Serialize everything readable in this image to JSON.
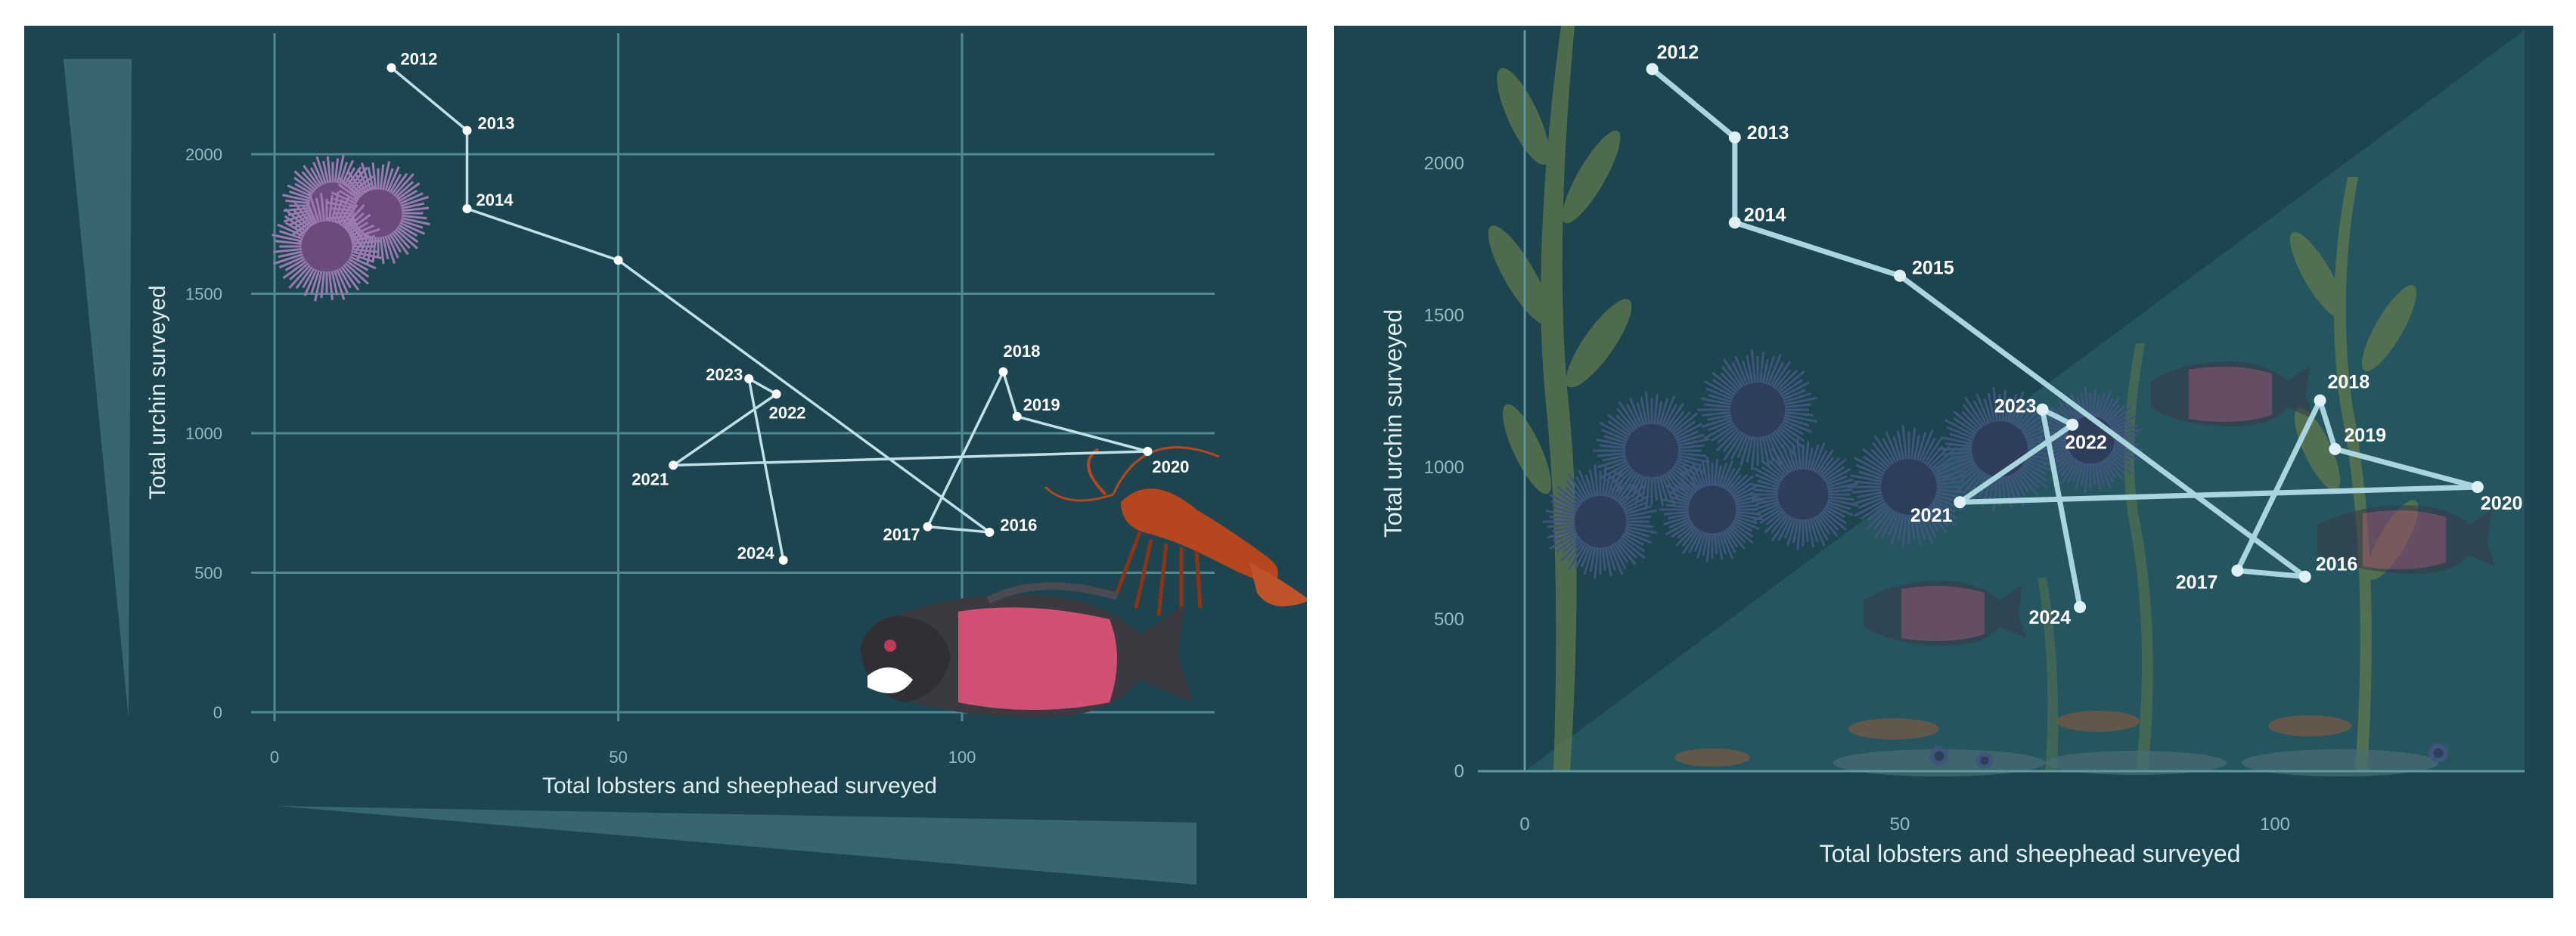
{
  "chart_data": [
    {
      "type": "line",
      "style": "connected scatter with year labels, illustrated urchins, sheephead and lobster",
      "xlabel": "Total lobsters and sheephead surveyed",
      "ylabel": "Total urchin surveyed",
      "xlim": [
        -3,
        134
      ],
      "ylim": [
        -40,
        2380
      ],
      "xticks": [
        0,
        50,
        100
      ],
      "yticks": [
        0,
        500,
        1000,
        1500,
        2000
      ],
      "grid": true,
      "points": [
        {
          "year": "2012",
          "x": 17,
          "y": 2310
        },
        {
          "year": "2013",
          "x": 28,
          "y": 2085
        },
        {
          "year": "2014",
          "x": 28,
          "y": 1805
        },
        {
          "year": "",
          "x": 50,
          "y": 1620
        },
        {
          "year": "2016",
          "x": 104,
          "y": 645
        },
        {
          "year": "2017",
          "x": 95,
          "y": 665
        },
        {
          "year": "2018",
          "x": 106,
          "y": 1220
        },
        {
          "year": "2019",
          "x": 108,
          "y": 1060
        },
        {
          "year": "2020",
          "x": 127,
          "y": 935
        },
        {
          "year": "2021",
          "x": 58,
          "y": 885
        },
        {
          "year": "2022",
          "x": 73,
          "y": 1140
        },
        {
          "year": "2023",
          "x": 69,
          "y": 1195
        },
        {
          "year": "2024",
          "x": 74,
          "y": 545
        }
      ]
    },
    {
      "type": "line",
      "style": "connected scatter with year labels over kelp forest illustration",
      "xlabel": "Total lobsters and sheephead surveyed",
      "ylabel": "Total urchin surveyed",
      "xlim": [
        -6,
        133
      ],
      "ylim": [
        0,
        2350
      ],
      "xticks": [
        0,
        50,
        100
      ],
      "yticks": [
        0,
        500,
        1000,
        1500,
        2000
      ],
      "grid": false,
      "points": [
        {
          "year": "2012",
          "x": 17,
          "y": 2310
        },
        {
          "year": "2013",
          "x": 28,
          "y": 2085
        },
        {
          "year": "2014",
          "x": 28,
          "y": 1805
        },
        {
          "year": "2015",
          "x": 50,
          "y": 1630
        },
        {
          "year": "2016",
          "x": 104,
          "y": 640
        },
        {
          "year": "2017",
          "x": 95,
          "y": 660
        },
        {
          "year": "2018",
          "x": 106,
          "y": 1220
        },
        {
          "year": "2019",
          "x": 108,
          "y": 1060
        },
        {
          "year": "2020",
          "x": 127,
          "y": 935
        },
        {
          "year": "2021",
          "x": 58,
          "y": 885
        },
        {
          "year": "2022",
          "x": 73,
          "y": 1140
        },
        {
          "year": "2023",
          "x": 69,
          "y": 1190
        },
        {
          "year": "2024",
          "x": 74,
          "y": 540
        }
      ]
    }
  ],
  "colors": {
    "background": "#1d4550",
    "grid": "#4f8a92",
    "line_left": "#bfe1e7",
    "line_right": "#a9d5de",
    "wedge": "#3c6c75",
    "urchin_left": "#6b4a7e",
    "urchin_right": "#2d3d5a",
    "kelp": "#5f7a4c",
    "sheephead_body": "#d25072",
    "lobster": "#b5461e"
  }
}
